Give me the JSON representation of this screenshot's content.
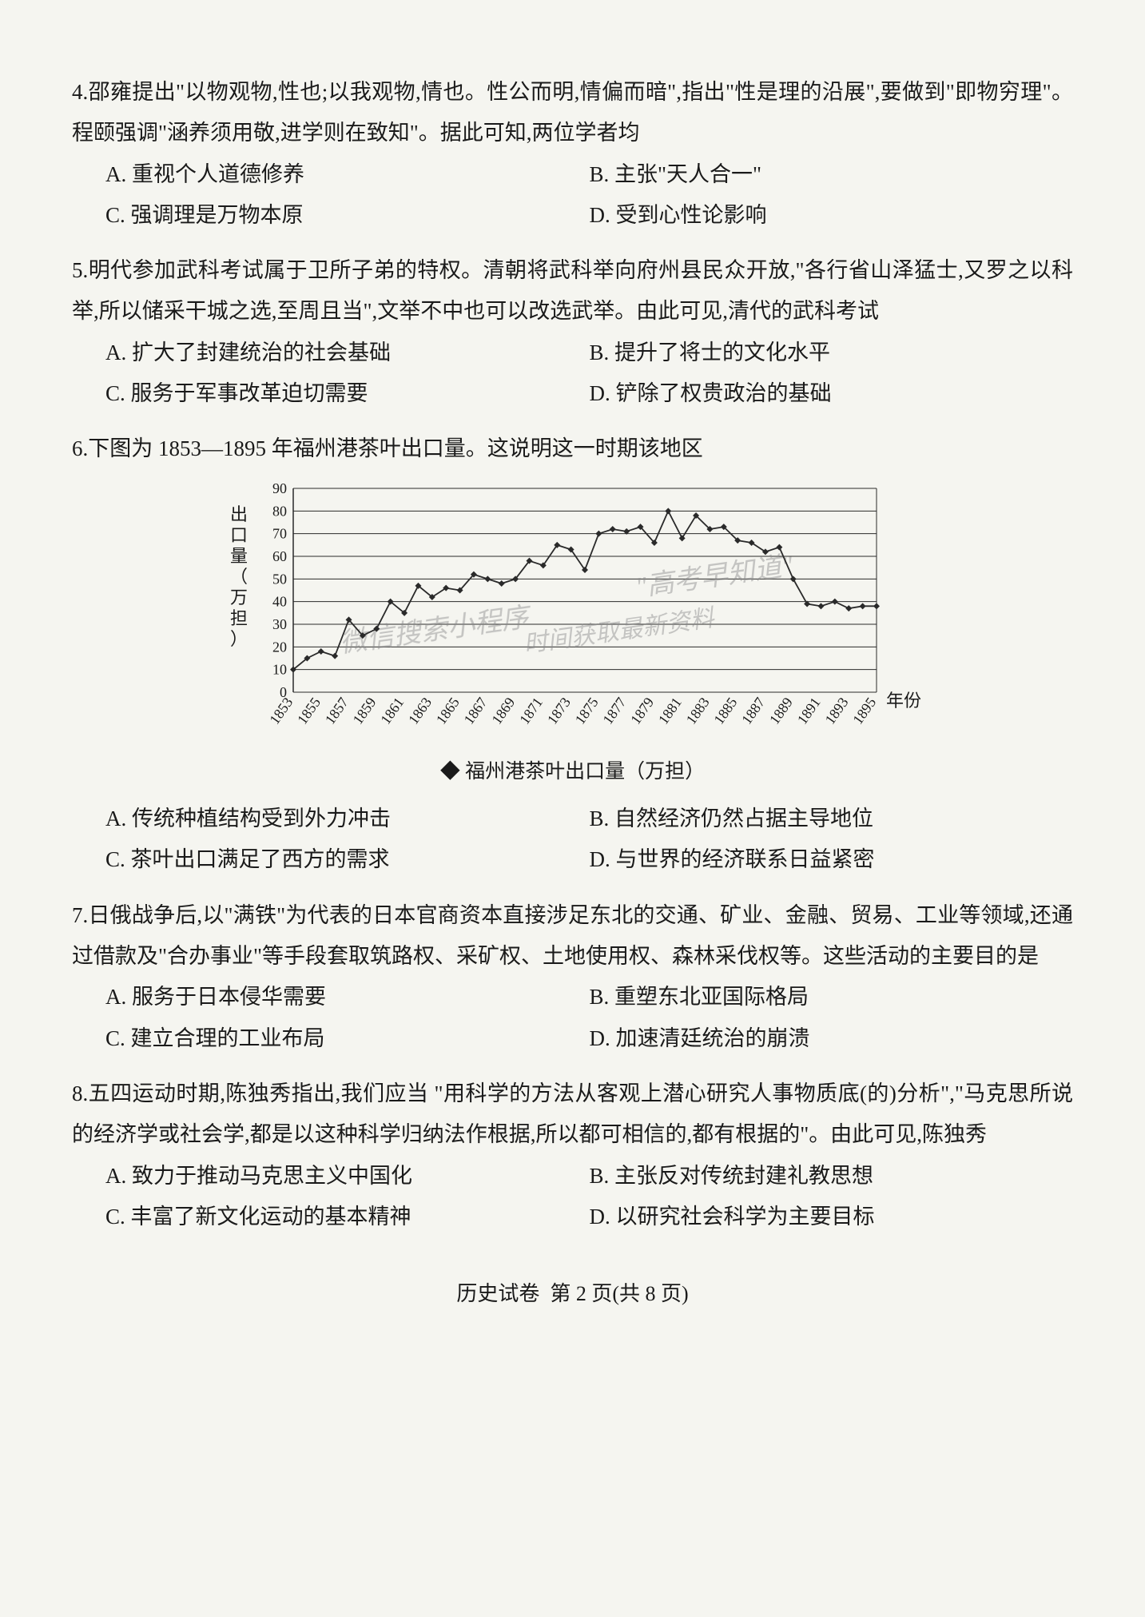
{
  "questions": [
    {
      "number": "4.",
      "text": "邵雍提出\"以物观物,性也;以我观物,情也。性公而明,情偏而暗\",指出\"性是理的沿展\",要做到\"即物穷理\"。程颐强调\"涵养须用敬,进学则在致知\"。据此可知,两位学者均",
      "options": {
        "A": "A. 重视个人道德修养",
        "B": "B. 主张\"天人合一\"",
        "C": "C. 强调理是万物本原",
        "D": "D. 受到心性论影响"
      }
    },
    {
      "number": "5.",
      "text": "明代参加武科考试属于卫所子弟的特权。清朝将武科举向府州县民众开放,\"各行省山泽猛士,又罗之以科举,所以储采干城之选,至周且当\",文举不中也可以改选武举。由此可见,清代的武科考试",
      "options": {
        "A": "A. 扩大了封建统治的社会基础",
        "B": "B. 提升了将士的文化水平",
        "C": "C. 服务于军事改革迫切需要",
        "D": "D. 铲除了权贵政治的基础"
      }
    },
    {
      "number": "6.",
      "text": "下图为 1853—1895 年福州港茶叶出口量。这说明这一时期该地区",
      "options": {
        "A": "A. 传统种植结构受到外力冲击",
        "B": "B. 自然经济仍然占据主导地位",
        "C": "C. 茶叶出口满足了西方的需求",
        "D": "D. 与世界的经济联系日益紧密"
      }
    },
    {
      "number": "7.",
      "text": "日俄战争后,以\"满铁\"为代表的日本官商资本直接涉足东北的交通、矿业、金融、贸易、工业等领域,还通过借款及\"合办事业\"等手段套取筑路权、采矿权、土地使用权、森林采伐权等。这些活动的主要目的是",
      "options": {
        "A": "A. 服务于日本侵华需要",
        "B": "B. 重塑东北亚国际格局",
        "C": "C. 建立合理的工业布局",
        "D": "D. 加速清廷统治的崩溃"
      }
    },
    {
      "number": "8.",
      "text": "五四运动时期,陈独秀指出,我们应当 \"用科学的方法从客观上潜心研究人事物质底(的)分析\",\"马克思所说的经济学或社会学,都是以这种科学归纳法作根据,所以都可相信的,都有根据的\"。由此可见,陈独秀",
      "options": {
        "A": "A. 致力于推动马克思主义中国化",
        "B": "B. 主张反对传统封建礼教思想",
        "C": "C. 丰富了新文化运动的基本精神",
        "D": "D. 以研究社会科学为主要目标"
      }
    }
  ],
  "chart": {
    "type": "line",
    "title_y": "出口量（万担）",
    "x_label": "年份",
    "legend": "福州港茶叶出口量（万担）",
    "ylim": [
      0,
      90
    ],
    "ytick_step": 10,
    "yticks": [
      0,
      10,
      20,
      30,
      40,
      50,
      60,
      70,
      80,
      90
    ],
    "xlabels": [
      "1853",
      "1855",
      "1857",
      "1859",
      "1861",
      "1863",
      "1865",
      "1867",
      "1869",
      "1871",
      "1873",
      "1875",
      "1877",
      "1879",
      "1881",
      "1883",
      "1885",
      "1887",
      "1889",
      "1891",
      "1893",
      "1895"
    ],
    "values": [
      10,
      15,
      18,
      16,
      32,
      25,
      28,
      40,
      35,
      47,
      42,
      46,
      45,
      52,
      50,
      48,
      50,
      58,
      56,
      65,
      63,
      54,
      70,
      72,
      71,
      73,
      66,
      80,
      68,
      78,
      72,
      73,
      67,
      66,
      62,
      64,
      50,
      39,
      38,
      40,
      37,
      38,
      38
    ],
    "line_color": "#2a2a2a",
    "marker_color": "#2a2a2a",
    "marker_size": 4,
    "grid_color": "#2a2a2a",
    "background_color": "#f5f5f0",
    "axis_fontsize": 18,
    "label_fontsize": 22,
    "yaxis_title_chars": [
      "出",
      "口",
      "量",
      "（",
      "万",
      "担",
      "）"
    ],
    "legend_marker": "◆",
    "watermark": {
      "text1": "微信搜索小程序",
      "text2": "\"高考早知道\"",
      "text3": "时间获取最新资料",
      "color": "#888888",
      "opacity": 0.45
    }
  },
  "footer": {
    "subject": "历史试卷",
    "page": "第 2 页(共 8 页)"
  }
}
